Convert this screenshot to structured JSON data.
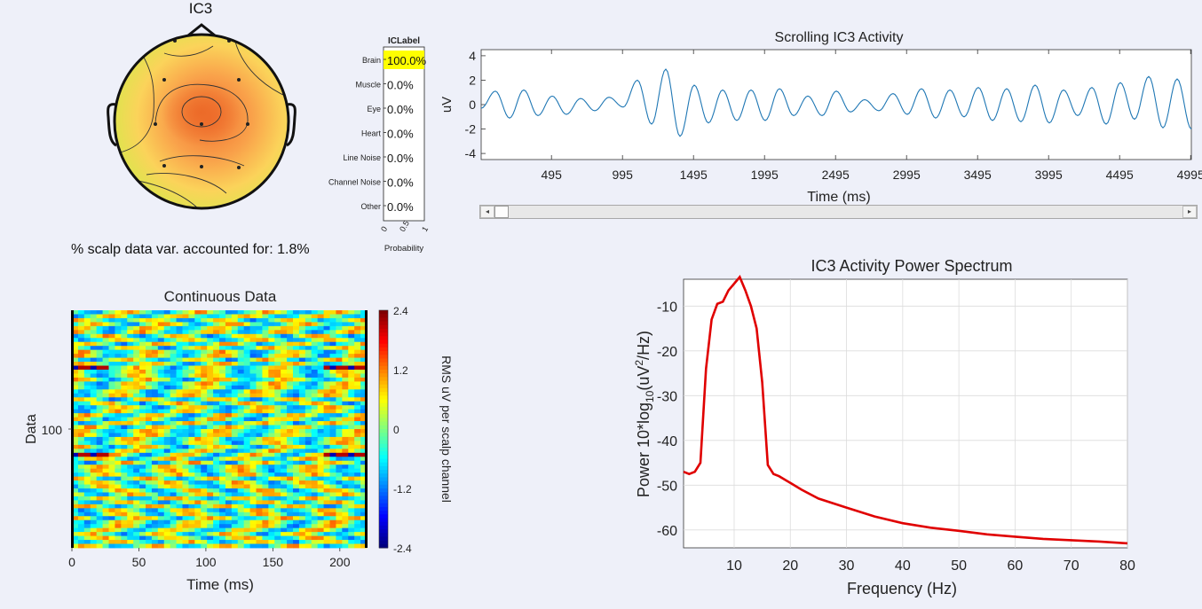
{
  "topo": {
    "title": "IC3",
    "variance_label": "% scalp data var. accounted for: 1.8%"
  },
  "iclabel": {
    "title": "ICLabel",
    "xlabel": "Probability",
    "xticks": [
      "0",
      "0.5",
      "1"
    ],
    "categories": [
      "Brain",
      "Muscle",
      "Eye",
      "Heart",
      "Line Noise",
      "Channel Noise",
      "Other"
    ],
    "values": [
      "100.0%",
      "0.0%",
      "0.0%",
      "0.0%",
      "0.0%",
      "0.0%",
      "0.0%"
    ],
    "highlight_color": "#ffff00"
  },
  "scroll": {
    "left_arrow": "◂",
    "right_arrow": "▸"
  },
  "chart_data": [
    {
      "type": "line",
      "title": "Scrolling IC3 Activity",
      "xlabel": "Time (ms)",
      "ylabel": "uV",
      "xticks": [
        "495",
        "995",
        "1495",
        "1995",
        "2495",
        "2995",
        "3495",
        "3995",
        "4495",
        "4995"
      ],
      "yticks": [
        "4",
        "2",
        "0",
        "-2",
        "-4"
      ],
      "xlim": [
        0,
        5000
      ],
      "ylim": [
        -4.5,
        4.5
      ],
      "color": "#1f77b4",
      "peaks": [
        [
          0,
          -0.3
        ],
        [
          100,
          1.1
        ],
        [
          200,
          -1.1
        ],
        [
          300,
          1.2
        ],
        [
          400,
          -0.9
        ],
        [
          500,
          0.7
        ],
        [
          600,
          -0.8
        ],
        [
          700,
          0.5
        ],
        [
          800,
          -0.5
        ],
        [
          900,
          0.6
        ],
        [
          1000,
          -0.2
        ],
        [
          1100,
          2.0
        ],
        [
          1200,
          -1.6
        ],
        [
          1300,
          2.9
        ],
        [
          1400,
          -2.6
        ],
        [
          1500,
          1.6
        ],
        [
          1600,
          -1.5
        ],
        [
          1700,
          1.2
        ],
        [
          1800,
          -1.3
        ],
        [
          1900,
          1.2
        ],
        [
          2000,
          -1.3
        ],
        [
          2100,
          1.3
        ],
        [
          2200,
          -0.9
        ],
        [
          2300,
          0.7
        ],
        [
          2400,
          -0.9
        ],
        [
          2500,
          1.1
        ],
        [
          2600,
          -0.6
        ],
        [
          2700,
          0.4
        ],
        [
          2800,
          -0.5
        ],
        [
          2900,
          0.9
        ],
        [
          3000,
          -0.8
        ],
        [
          3100,
          1.3
        ],
        [
          3200,
          -1.1
        ],
        [
          3300,
          1.2
        ],
        [
          3400,
          -1.0
        ],
        [
          3500,
          1.4
        ],
        [
          3600,
          -1.3
        ],
        [
          3700,
          1.3
        ],
        [
          3800,
          -1.4
        ],
        [
          3900,
          1.6
        ],
        [
          4000,
          -1.5
        ],
        [
          4100,
          1.2
        ],
        [
          4200,
          -0.9
        ],
        [
          4300,
          1.4
        ],
        [
          4400,
          -1.6
        ],
        [
          4500,
          1.8
        ],
        [
          4600,
          -1.2
        ],
        [
          4700,
          2.3
        ],
        [
          4800,
          -1.9
        ],
        [
          4900,
          2.1
        ],
        [
          5000,
          -2.0
        ]
      ]
    },
    {
      "type": "heatmap",
      "title": "Continuous Data",
      "xlabel": "Time (ms)",
      "ylabel": "Data",
      "xticks": [
        "0",
        "50",
        "100",
        "150",
        "200"
      ],
      "xlim": [
        0,
        220
      ],
      "ytick": "100",
      "colorbar_label": "RMS uV per scalp channel",
      "colorbar_ticks": [
        "2.4",
        "1.2",
        "0",
        "-1.2",
        "-2.4"
      ],
      "clim": [
        -2.4,
        2.4
      ],
      "colormap": "jet"
    },
    {
      "type": "line",
      "title": "IC3 Activity Power Spectrum",
      "xlabel": "Frequency (Hz)",
      "ylabel_prefix": "Power 10*log",
      "ylabel_sub": "10",
      "ylabel_mid": "(uV",
      "ylabel_sup": "2",
      "ylabel_suffix": "/Hz)",
      "xticks": [
        "10",
        "20",
        "30",
        "40",
        "50",
        "60",
        "70",
        "80"
      ],
      "yticks": [
        "-10",
        "-20",
        "-30",
        "-40",
        "-50",
        "-60"
      ],
      "xlim": [
        1,
        80
      ],
      "ylim": [
        -64,
        -4
      ],
      "grid": true,
      "color": "#e00000",
      "x": [
        1,
        2,
        3,
        4,
        5,
        6,
        7,
        8,
        9,
        10,
        11,
        12,
        13,
        14,
        15,
        16,
        17,
        18,
        20,
        22,
        25,
        30,
        35,
        40,
        45,
        50,
        55,
        60,
        65,
        70,
        75,
        80
      ],
      "y": [
        -47,
        -47.5,
        -47,
        -45,
        -24,
        -13,
        -9.5,
        -9,
        -6.5,
        -5,
        -3.5,
        -6.5,
        -10,
        -15,
        -27,
        -45.5,
        -47.5,
        -48,
        -49.5,
        -51,
        -53,
        -55,
        -57,
        -58.5,
        -59.5,
        -60.2,
        -61,
        -61.5,
        -62,
        -62.3,
        -62.6,
        -63
      ]
    }
  ]
}
